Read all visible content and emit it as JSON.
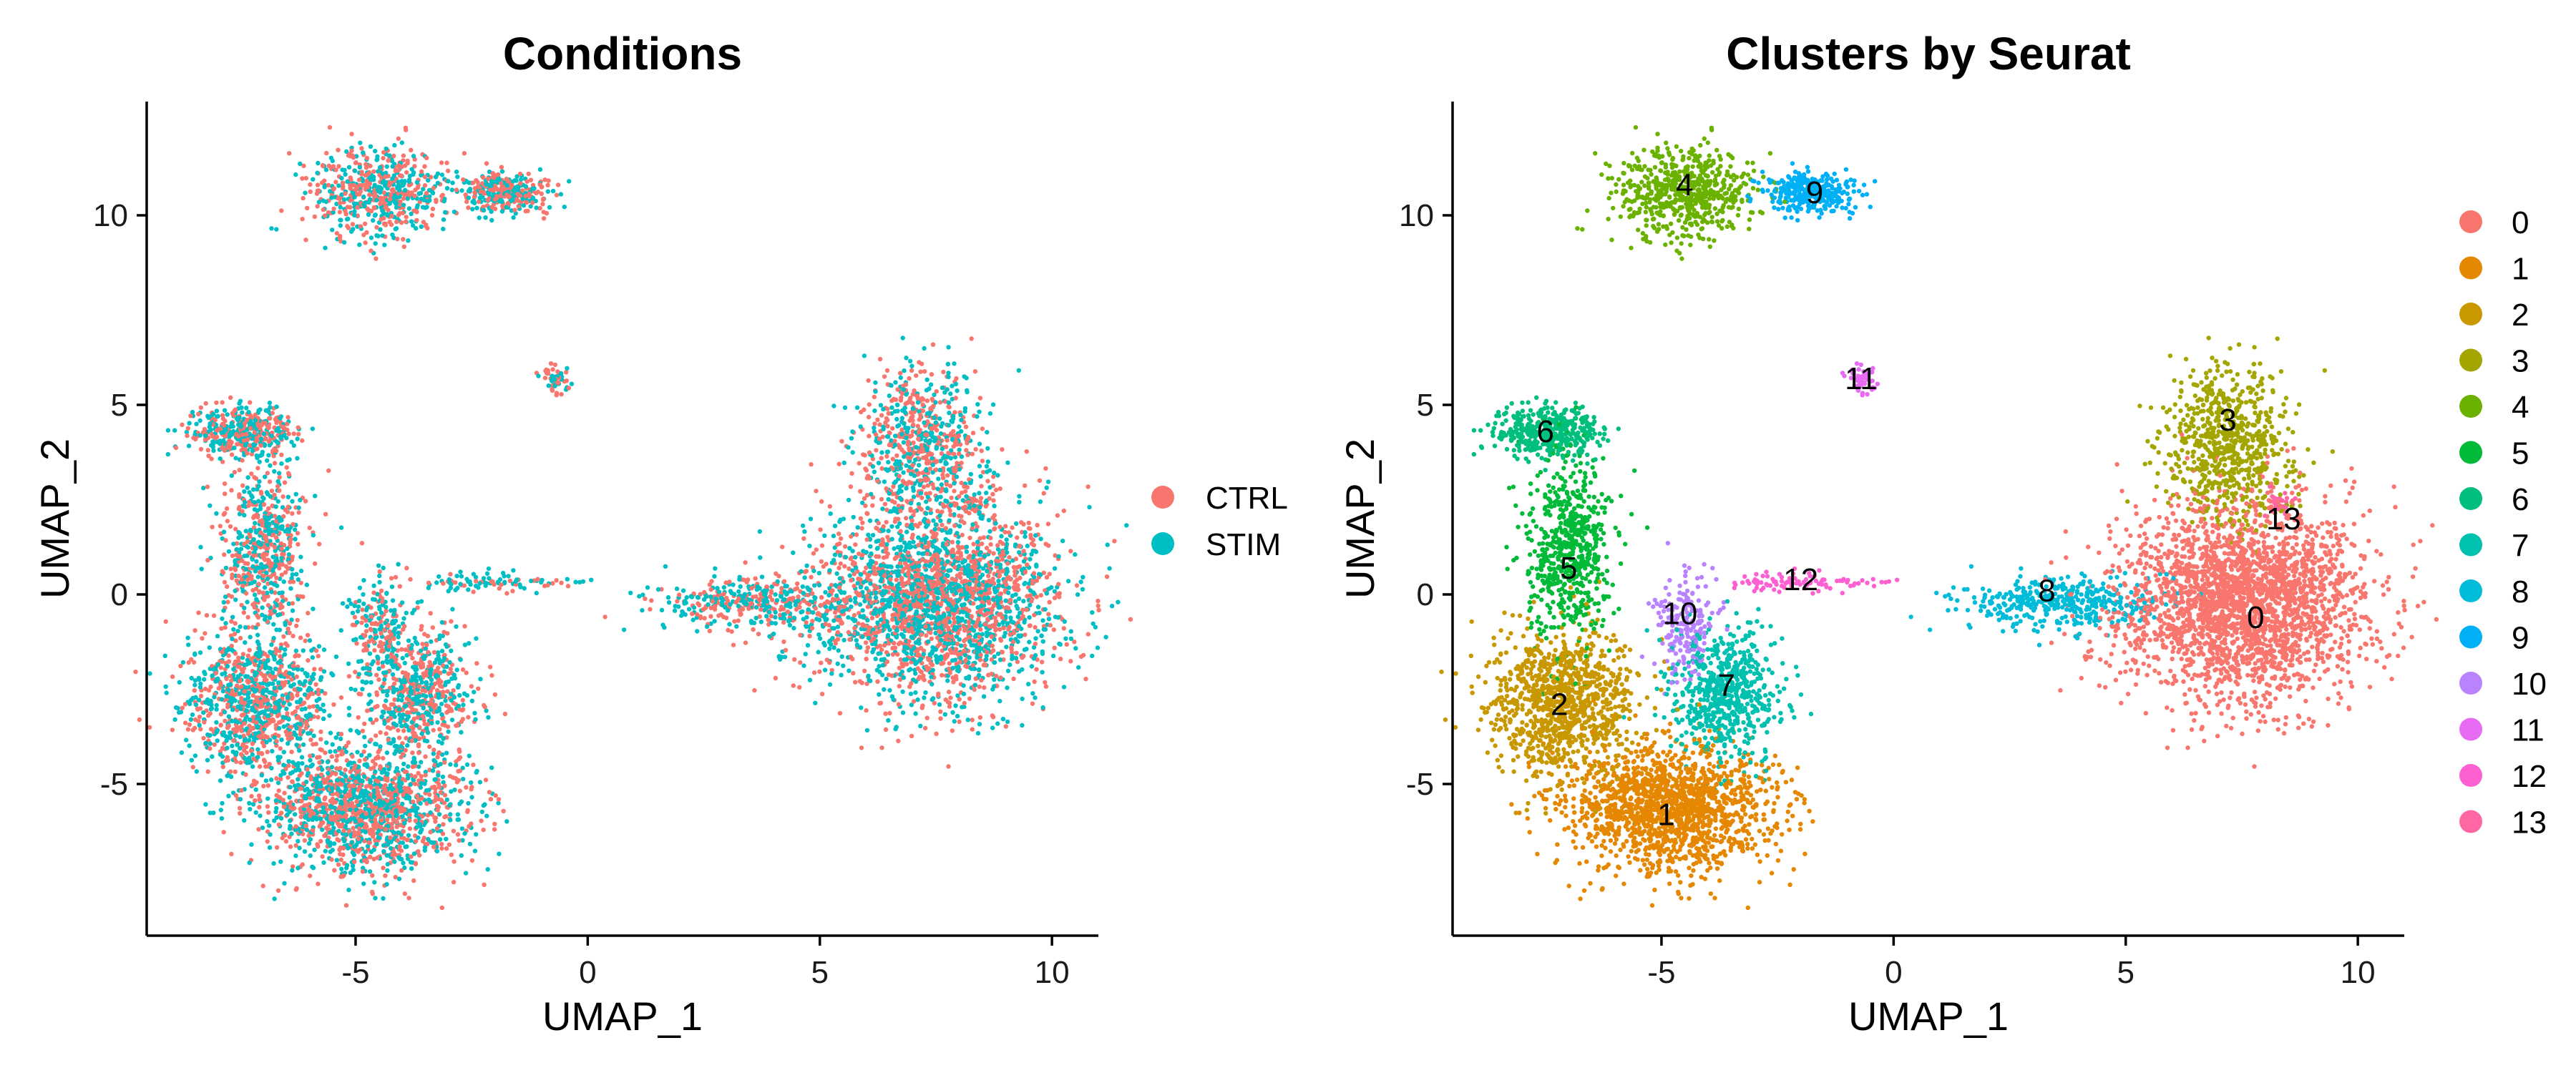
{
  "chart_data": [
    {
      "type": "scatter",
      "title": "Conditions",
      "xlabel": "UMAP_1",
      "ylabel": "UMAP_2",
      "xlim": [
        -9.5,
        11
      ],
      "ylim": [
        -9,
        13
      ],
      "xticks": [
        -5,
        0,
        5,
        10
      ],
      "xtick_labels": [
        "-5",
        "0",
        "5",
        "10"
      ],
      "yticks": [
        -5,
        0,
        5,
        10
      ],
      "ytick_labels": [
        "-5",
        "0",
        "5",
        "10"
      ],
      "grid": false,
      "legend_position": "right",
      "legend": [
        {
          "label": "CTRL",
          "color": "#F8766D"
        },
        {
          "label": "STIM",
          "color": "#00BFC4"
        }
      ]
    },
    {
      "type": "scatter",
      "title": "Clusters by Seurat",
      "xlabel": "UMAP_1",
      "ylabel": "UMAP_2",
      "xlim": [
        -9.5,
        11
      ],
      "ylim": [
        -9,
        13
      ],
      "xticks": [
        -5,
        0,
        5,
        10
      ],
      "xtick_labels": [
        "-5",
        "0",
        "5",
        "10"
      ],
      "yticks": [
        -5,
        0,
        5,
        10
      ],
      "ytick_labels": [
        "-5",
        "0",
        "5",
        "10"
      ],
      "grid": false,
      "legend_position": "right",
      "legend": [
        {
          "label": "0",
          "color": "#F8766D"
        },
        {
          "label": "1",
          "color": "#E58700"
        },
        {
          "label": "2",
          "color": "#C99800"
        },
        {
          "label": "3",
          "color": "#A3A500"
        },
        {
          "label": "4",
          "color": "#6BB100"
        },
        {
          "label": "5",
          "color": "#00BA38"
        },
        {
          "label": "6",
          "color": "#00BF7D"
        },
        {
          "label": "7",
          "color": "#00C0AF"
        },
        {
          "label": "8",
          "color": "#00BCD8"
        },
        {
          "label": "9",
          "color": "#00B0F6"
        },
        {
          "label": "10",
          "color": "#B983FF"
        },
        {
          "label": "11",
          "color": "#E76BF3"
        },
        {
          "label": "12",
          "color": "#FD61D1"
        },
        {
          "label": "13",
          "color": "#FF67A4"
        }
      ],
      "cluster_labels": [
        {
          "label": "0",
          "x": 7.8,
          "y": -0.6
        },
        {
          "label": "1",
          "x": -4.9,
          "y": -5.8
        },
        {
          "label": "2",
          "x": -7.2,
          "y": -2.9
        },
        {
          "label": "3",
          "x": 7.2,
          "y": 4.6
        },
        {
          "label": "4",
          "x": -4.5,
          "y": 10.8
        },
        {
          "label": "5",
          "x": -7.0,
          "y": 0.7
        },
        {
          "label": "6",
          "x": -7.5,
          "y": 4.3
        },
        {
          "label": "7",
          "x": -3.6,
          "y": -2.4
        },
        {
          "label": "8",
          "x": 3.3,
          "y": 0.1
        },
        {
          "label": "9",
          "x": -1.7,
          "y": 10.6
        },
        {
          "label": "10",
          "x": -4.6,
          "y": -0.5
        },
        {
          "label": "11",
          "x": -0.7,
          "y": 5.7
        },
        {
          "label": "12",
          "x": -2.0,
          "y": 0.4
        },
        {
          "label": "13",
          "x": 8.4,
          "y": 2.0
        }
      ],
      "regions": [
        {
          "cluster": "0",
          "cx": 7.5,
          "cy": -0.2,
          "rx": 2.4,
          "ry": 2.3,
          "n": 2600
        },
        {
          "cluster": "1",
          "cx": -4.8,
          "cy": -5.6,
          "rx": 2.0,
          "ry": 1.5,
          "n": 1500
        },
        {
          "cluster": "2",
          "cx": -7.1,
          "cy": -2.9,
          "rx": 1.4,
          "ry": 1.7,
          "n": 1000
        },
        {
          "cluster": "3",
          "cx": 7.2,
          "cy": 4.0,
          "rx": 1.2,
          "ry": 1.8,
          "n": 700
        },
        {
          "cluster": "4",
          "cx": -4.5,
          "cy": 10.6,
          "rx": 1.3,
          "ry": 1.1,
          "n": 600
        },
        {
          "cluster": "5",
          "cx": -7.0,
          "cy": 1.2,
          "rx": 0.8,
          "ry": 2.2,
          "n": 600
        },
        {
          "cluster": "6",
          "cx": -7.5,
          "cy": 4.3,
          "rx": 1.0,
          "ry": 0.6,
          "n": 420
        },
        {
          "cluster": "7",
          "cx": -3.6,
          "cy": -2.6,
          "rx": 1.1,
          "ry": 1.5,
          "n": 600
        },
        {
          "cluster": "8",
          "cx": 3.5,
          "cy": -0.2,
          "rx": 2.0,
          "ry": 0.6,
          "n": 400
        },
        {
          "cluster": "9",
          "cx": -1.8,
          "cy": 10.6,
          "rx": 1.0,
          "ry": 0.5,
          "n": 300
        },
        {
          "cluster": "10",
          "cx": -4.5,
          "cy": -0.8,
          "rx": 0.6,
          "ry": 1.3,
          "n": 200
        },
        {
          "cluster": "11",
          "cx": -0.7,
          "cy": 5.7,
          "rx": 0.25,
          "ry": 0.3,
          "n": 60
        },
        {
          "cluster": "12",
          "cx": -2.0,
          "cy": 0.35,
          "rx": 1.4,
          "ry": 0.25,
          "n": 90
        },
        {
          "cluster": "13",
          "cx": 8.3,
          "cy": 2.4,
          "rx": 0.3,
          "ry": 0.3,
          "n": 30
        }
      ]
    }
  ]
}
